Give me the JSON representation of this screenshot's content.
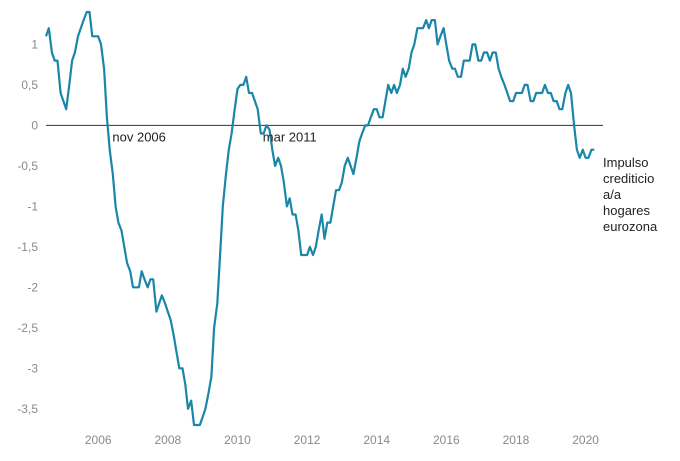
{
  "chart_data": {
    "type": "line",
    "title": "",
    "xlabel": "",
    "ylabel": "",
    "xlim": [
      2005.0,
      2021.0
    ],
    "ylim": [
      -3.7,
      1.45
    ],
    "grid": false,
    "x_ticks": [
      "2006",
      "2008",
      "2010",
      "2012",
      "2014",
      "2016",
      "2018",
      "2020"
    ],
    "y_ticks": [
      "1",
      "0,5",
      "0",
      "-0,5",
      "-1",
      "-1,5",
      "-2",
      "-2,5",
      "-3",
      "-3,5"
    ],
    "zero_line": true,
    "series": [
      {
        "name": "Impulso crediticio a/a hogares eurozona",
        "color": "#1a86a8",
        "points": [
          [
            2005.0,
            1.1
          ],
          [
            2005.08,
            1.2
          ],
          [
            2005.17,
            0.9
          ],
          [
            2005.25,
            0.8
          ],
          [
            2005.33,
            0.8
          ],
          [
            2005.42,
            0.4
          ],
          [
            2005.5,
            0.3
          ],
          [
            2005.58,
            0.2
          ],
          [
            2005.67,
            0.5
          ],
          [
            2005.75,
            0.8
          ],
          [
            2005.83,
            0.9
          ],
          [
            2005.92,
            1.1
          ],
          [
            2006.0,
            1.2
          ],
          [
            2006.08,
            1.3
          ],
          [
            2006.17,
            1.4
          ],
          [
            2006.25,
            1.4
          ],
          [
            2006.33,
            1.1
          ],
          [
            2006.42,
            1.1
          ],
          [
            2006.5,
            1.1
          ],
          [
            2006.58,
            1.0
          ],
          [
            2006.67,
            0.7
          ],
          [
            2006.75,
            0.1
          ],
          [
            2006.83,
            -0.3
          ],
          [
            2006.92,
            -0.6
          ],
          [
            2007.0,
            -1.0
          ],
          [
            2007.08,
            -1.2
          ],
          [
            2007.17,
            -1.3
          ],
          [
            2007.25,
            -1.5
          ],
          [
            2007.33,
            -1.7
          ],
          [
            2007.42,
            -1.8
          ],
          [
            2007.5,
            -2.0
          ],
          [
            2007.58,
            -2.0
          ],
          [
            2007.67,
            -2.0
          ],
          [
            2007.75,
            -1.8
          ],
          [
            2007.83,
            -1.9
          ],
          [
            2007.92,
            -2.0
          ],
          [
            2008.0,
            -1.9
          ],
          [
            2008.08,
            -1.9
          ],
          [
            2008.17,
            -2.3
          ],
          [
            2008.25,
            -2.2
          ],
          [
            2008.33,
            -2.1
          ],
          [
            2008.42,
            -2.2
          ],
          [
            2008.5,
            -2.3
          ],
          [
            2008.58,
            -2.4
          ],
          [
            2008.67,
            -2.6
          ],
          [
            2008.75,
            -2.8
          ],
          [
            2008.83,
            -3.0
          ],
          [
            2008.92,
            -3.0
          ],
          [
            2009.0,
            -3.2
          ],
          [
            2009.08,
            -3.5
          ],
          [
            2009.17,
            -3.4
          ],
          [
            2009.25,
            -3.7
          ],
          [
            2009.33,
            -3.7
          ],
          [
            2009.42,
            -3.7
          ],
          [
            2009.5,
            -3.6
          ],
          [
            2009.58,
            -3.5
          ],
          [
            2009.67,
            -3.3
          ],
          [
            2009.75,
            -3.1
          ],
          [
            2009.83,
            -2.5
          ],
          [
            2009.92,
            -2.2
          ],
          [
            2010.0,
            -1.6
          ],
          [
            2010.08,
            -1.0
          ],
          [
            2010.17,
            -0.6
          ],
          [
            2010.25,
            -0.3
          ],
          [
            2010.33,
            -0.1
          ],
          [
            2010.42,
            0.2
          ],
          [
            2010.5,
            0.45
          ],
          [
            2010.58,
            0.5
          ],
          [
            2010.67,
            0.5
          ],
          [
            2010.75,
            0.6
          ],
          [
            2010.83,
            0.4
          ],
          [
            2010.92,
            0.4
          ],
          [
            2011.0,
            0.3
          ],
          [
            2011.08,
            0.2
          ],
          [
            2011.17,
            -0.1
          ],
          [
            2011.25,
            -0.1
          ],
          [
            2011.33,
            0.0
          ],
          [
            2011.42,
            -0.05
          ],
          [
            2011.5,
            -0.3
          ],
          [
            2011.58,
            -0.5
          ],
          [
            2011.67,
            -0.4
          ],
          [
            2011.75,
            -0.5
          ],
          [
            2011.83,
            -0.7
          ],
          [
            2011.92,
            -1.0
          ],
          [
            2012.0,
            -0.9
          ],
          [
            2012.08,
            -1.1
          ],
          [
            2012.17,
            -1.1
          ],
          [
            2012.25,
            -1.3
          ],
          [
            2012.33,
            -1.6
          ],
          [
            2012.42,
            -1.6
          ],
          [
            2012.5,
            -1.6
          ],
          [
            2012.58,
            -1.5
          ],
          [
            2012.67,
            -1.6
          ],
          [
            2012.75,
            -1.5
          ],
          [
            2012.83,
            -1.3
          ],
          [
            2012.92,
            -1.1
          ],
          [
            2013.0,
            -1.4
          ],
          [
            2013.08,
            -1.2
          ],
          [
            2013.17,
            -1.2
          ],
          [
            2013.25,
            -1.0
          ],
          [
            2013.33,
            -0.8
          ],
          [
            2013.42,
            -0.8
          ],
          [
            2013.5,
            -0.7
          ],
          [
            2013.58,
            -0.5
          ],
          [
            2013.67,
            -0.4
          ],
          [
            2013.75,
            -0.5
          ],
          [
            2013.83,
            -0.6
          ],
          [
            2013.92,
            -0.4
          ],
          [
            2014.0,
            -0.2
          ],
          [
            2014.08,
            -0.1
          ],
          [
            2014.17,
            0.0
          ],
          [
            2014.25,
            0.0
          ],
          [
            2014.33,
            0.1
          ],
          [
            2014.42,
            0.2
          ],
          [
            2014.5,
            0.2
          ],
          [
            2014.58,
            0.1
          ],
          [
            2014.67,
            0.1
          ],
          [
            2014.75,
            0.3
          ],
          [
            2014.83,
            0.5
          ],
          [
            2014.92,
            0.4
          ],
          [
            2015.0,
            0.5
          ],
          [
            2015.08,
            0.4
          ],
          [
            2015.17,
            0.5
          ],
          [
            2015.25,
            0.7
          ],
          [
            2015.33,
            0.6
          ],
          [
            2015.42,
            0.7
          ],
          [
            2015.5,
            0.9
          ],
          [
            2015.58,
            1.0
          ],
          [
            2015.67,
            1.2
          ],
          [
            2015.75,
            1.2
          ],
          [
            2015.83,
            1.2
          ],
          [
            2015.92,
            1.3
          ],
          [
            2016.0,
            1.2
          ],
          [
            2016.08,
            1.3
          ],
          [
            2016.17,
            1.3
          ],
          [
            2016.25,
            1.0
          ],
          [
            2016.33,
            1.1
          ],
          [
            2016.42,
            1.2
          ],
          [
            2016.5,
            1.0
          ],
          [
            2016.58,
            0.8
          ],
          [
            2016.67,
            0.7
          ],
          [
            2016.75,
            0.7
          ],
          [
            2016.83,
            0.6
          ],
          [
            2016.92,
            0.6
          ],
          [
            2017.0,
            0.8
          ],
          [
            2017.08,
            0.8
          ],
          [
            2017.17,
            0.8
          ],
          [
            2017.25,
            1.0
          ],
          [
            2017.33,
            1.0
          ],
          [
            2017.42,
            0.8
          ],
          [
            2017.5,
            0.8
          ],
          [
            2017.58,
            0.9
          ],
          [
            2017.67,
            0.9
          ],
          [
            2017.75,
            0.8
          ],
          [
            2017.83,
            0.9
          ],
          [
            2017.92,
            0.9
          ],
          [
            2018.0,
            0.7
          ],
          [
            2018.08,
            0.6
          ],
          [
            2018.17,
            0.5
          ],
          [
            2018.25,
            0.4
          ],
          [
            2018.33,
            0.3
          ],
          [
            2018.42,
            0.3
          ],
          [
            2018.5,
            0.4
          ],
          [
            2018.58,
            0.4
          ],
          [
            2018.67,
            0.4
          ],
          [
            2018.75,
            0.5
          ],
          [
            2018.83,
            0.5
          ],
          [
            2018.92,
            0.3
          ],
          [
            2019.0,
            0.3
          ],
          [
            2019.08,
            0.4
          ],
          [
            2019.17,
            0.4
          ],
          [
            2019.25,
            0.4
          ],
          [
            2019.33,
            0.5
          ],
          [
            2019.42,
            0.4
          ],
          [
            2019.5,
            0.4
          ],
          [
            2019.58,
            0.3
          ],
          [
            2019.67,
            0.3
          ],
          [
            2019.75,
            0.2
          ],
          [
            2019.83,
            0.2
          ],
          [
            2019.92,
            0.4
          ],
          [
            2020.0,
            0.5
          ],
          [
            2020.08,
            0.4
          ],
          [
            2020.17,
            0.0
          ],
          [
            2020.25,
            -0.3
          ],
          [
            2020.33,
            -0.4
          ],
          [
            2020.42,
            -0.3
          ],
          [
            2020.5,
            -0.4
          ],
          [
            2020.58,
            -0.4
          ],
          [
            2020.67,
            -0.3
          ],
          [
            2020.75,
            -0.3
          ]
        ]
      }
    ],
    "annotations": [
      {
        "text": "nov 2006",
        "x": 2006.85
      },
      {
        "text": "mar 2011",
        "x": 2011.17
      }
    ],
    "legend": {
      "lines": [
        "Impulso",
        "crediticio",
        "a/a",
        "hogares",
        "eurozona"
      ],
      "placement": "right"
    }
  }
}
